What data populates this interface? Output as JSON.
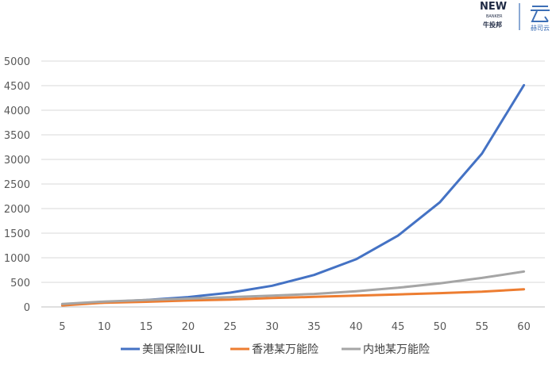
{
  "logos": {
    "left_main": "NEW",
    "left_sub": "BANKER",
    "left_cn": "牛投邦",
    "right_cn": "赫司云"
  },
  "colors": {
    "series1": "#4472c4",
    "series2": "#ed7d31",
    "series3": "#a5a5a5",
    "grid": "#d9d9d9",
    "axis": "#bfbfbf"
  },
  "chart_data": {
    "type": "line",
    "title": "",
    "xlabel": "",
    "ylabel": "",
    "x": [
      5,
      10,
      15,
      20,
      25,
      30,
      35,
      40,
      45,
      50,
      55,
      60
    ],
    "ylim": [
      0,
      5000
    ],
    "yticks": [
      0,
      500,
      1000,
      1500,
      2000,
      2500,
      3000,
      3500,
      4000,
      4500,
      5000
    ],
    "grid": true,
    "legend_position": "bottom",
    "series": [
      {
        "name": "美国保险IUL",
        "values": [
          50,
          100,
          140,
          200,
          290,
          430,
          650,
          970,
          1450,
          2130,
          3120,
          4510
        ]
      },
      {
        "name": "香港某万能险",
        "values": [
          30,
          85,
          105,
          130,
          150,
          180,
          205,
          230,
          255,
          280,
          310,
          360
        ]
      },
      {
        "name": "内地某万能险",
        "values": [
          60,
          110,
          140,
          170,
          200,
          230,
          265,
          320,
          390,
          480,
          590,
          720
        ]
      }
    ]
  }
}
